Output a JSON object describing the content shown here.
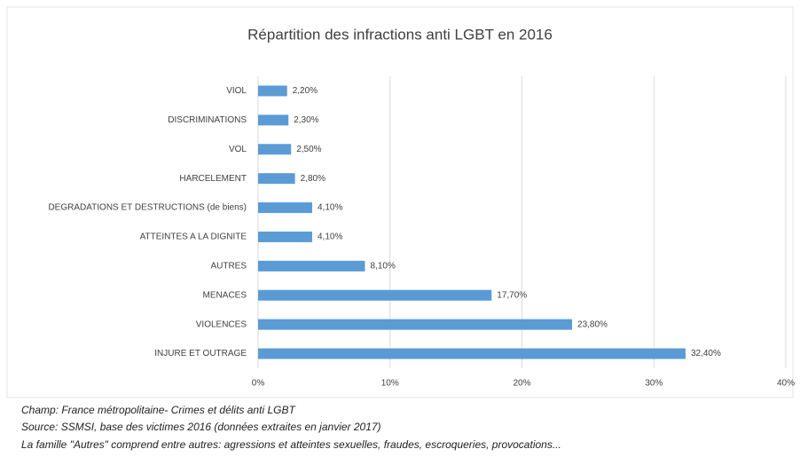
{
  "chart_data": {
    "type": "bar",
    "orientation": "horizontal",
    "title": "Répartition des infractions anti LGBT en 2016",
    "categories": [
      "VIOL",
      "DISCRIMINATIONS",
      "VOL",
      "HARCELEMENT",
      "DEGRADATIONS ET DESTRUCTIONS (de biens)",
      "ATTEINTES A LA DIGNITE",
      "AUTRES",
      "MENACES",
      "VIOLENCES",
      "INJURE ET OUTRAGE"
    ],
    "values": [
      2.2,
      2.3,
      2.5,
      2.8,
      4.1,
      4.1,
      8.1,
      17.7,
      23.8,
      32.4
    ],
    "value_labels": [
      "2,20%",
      "2,30%",
      "2,50%",
      "2,80%",
      "4,10%",
      "4,10%",
      "8,10%",
      "17,70%",
      "23,80%",
      "32,40%"
    ],
    "color": "#5b9bd5",
    "xlim": [
      0,
      40
    ],
    "xticks": [
      {
        "value": 0,
        "label": "0%"
      },
      {
        "value": 10,
        "label": "10%"
      },
      {
        "value": 20,
        "label": "20%"
      },
      {
        "value": 30,
        "label": "30%"
      },
      {
        "value": 40,
        "label": "40%"
      }
    ],
    "grid": true,
    "footnotes": [
      "Champ: France métropolitaine- Crimes et délits anti LGBT",
      "Source: SSMSI, base des victimes 2016 (données extraites en janvier 2017)",
      "La famille \"Autres\" comprend entre autres: agressions et atteintes sexuelles, fraudes, escroqueries, provocations..."
    ]
  }
}
